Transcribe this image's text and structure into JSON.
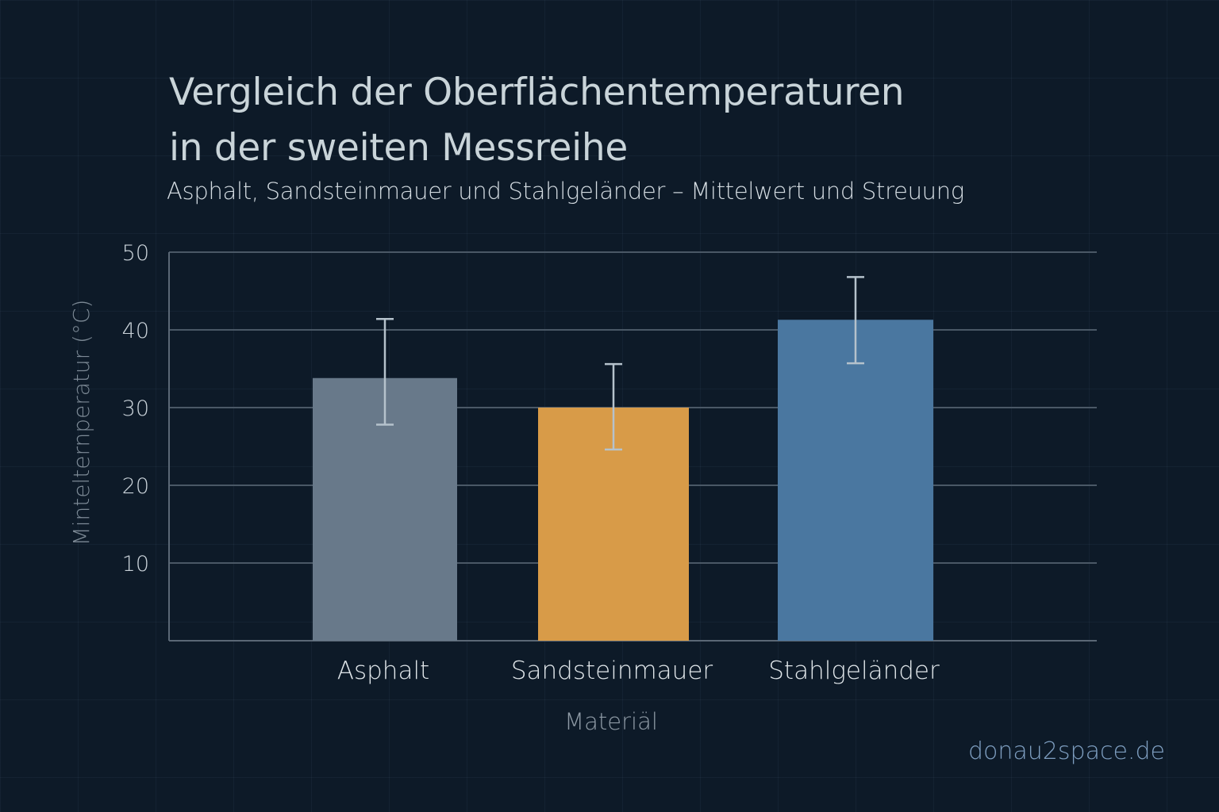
{
  "chart_data": {
    "type": "bar",
    "title": "Vergleich der Oberflächentemperaturen in der sweiten Messreihe",
    "title_lines": [
      "Vergleich der Oberflächentemperaturen",
      "in der sweiten Messreihe"
    ],
    "subtitle": "Asphalt, Sandsteinmauer und Stahlgeländer – Mittelwert und Streuung",
    "xlabel": "Materiäl",
    "ylabel": "Mintelternperatur (°C)",
    "ylim": [
      0,
      50
    ],
    "yticks": [
      10,
      20,
      30,
      40,
      50
    ],
    "grid": true,
    "categories": [
      "Asphalt",
      "Sandsteinmauer",
      "Stahlgeländer"
    ],
    "values": [
      33.8,
      30.0,
      41.3
    ],
    "error_low": [
      27.8,
      24.6,
      35.7
    ],
    "error_high": [
      41.4,
      35.6,
      46.8
    ],
    "colors": [
      "#68798a",
      "#d89b48",
      "#4a77a0"
    ]
  },
  "watermark": "donau2space.de"
}
